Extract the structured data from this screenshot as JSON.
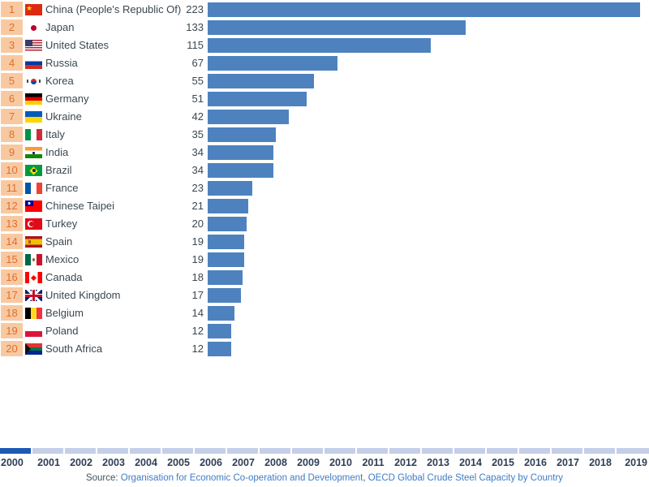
{
  "chart_data": {
    "type": "bar",
    "orientation": "horizontal",
    "title": "OECD Global Crude Steel Capacity by Country",
    "xlabel": "",
    "ylabel": "",
    "xlim": [
      0,
      223
    ],
    "grid": false,
    "legend": "none",
    "rows": [
      {
        "rank": 1,
        "country": "China (People's Republic Of)",
        "value": 223,
        "flag": "cn"
      },
      {
        "rank": 2,
        "country": "Japan",
        "value": 133,
        "flag": "jp"
      },
      {
        "rank": 3,
        "country": "United States",
        "value": 115,
        "flag": "us"
      },
      {
        "rank": 4,
        "country": "Russia",
        "value": 67,
        "flag": "ru"
      },
      {
        "rank": 5,
        "country": "Korea",
        "value": 55,
        "flag": "kr"
      },
      {
        "rank": 6,
        "country": "Germany",
        "value": 51,
        "flag": "de"
      },
      {
        "rank": 7,
        "country": "Ukraine",
        "value": 42,
        "flag": "ua"
      },
      {
        "rank": 8,
        "country": "Italy",
        "value": 35,
        "flag": "it"
      },
      {
        "rank": 9,
        "country": "India",
        "value": 34,
        "flag": "in"
      },
      {
        "rank": 10,
        "country": "Brazil",
        "value": 34,
        "flag": "br"
      },
      {
        "rank": 11,
        "country": "France",
        "value": 23,
        "flag": "fr"
      },
      {
        "rank": 12,
        "country": "Chinese Taipei",
        "value": 21,
        "flag": "tw"
      },
      {
        "rank": 13,
        "country": "Turkey",
        "value": 20,
        "flag": "tr"
      },
      {
        "rank": 14,
        "country": "Spain",
        "value": 19,
        "flag": "es"
      },
      {
        "rank": 15,
        "country": "Mexico",
        "value": 19,
        "flag": "mx"
      },
      {
        "rank": 16,
        "country": "Canada",
        "value": 18,
        "flag": "ca"
      },
      {
        "rank": 17,
        "country": "United Kingdom",
        "value": 17,
        "flag": "gb"
      },
      {
        "rank": 18,
        "country": "Belgium",
        "value": 14,
        "flag": "be"
      },
      {
        "rank": 19,
        "country": "Poland",
        "value": 12,
        "flag": "pl"
      },
      {
        "rank": 20,
        "country": "South Africa",
        "value": 12,
        "flag": "za"
      }
    ],
    "timeline": {
      "years": [
        "2000",
        "2001",
        "2002",
        "2003",
        "2004",
        "2005",
        "2006",
        "2007",
        "2008",
        "2009",
        "2010",
        "2011",
        "2012",
        "2013",
        "2014",
        "2015",
        "2016",
        "2017",
        "2018",
        "2019"
      ],
      "selected": "2000"
    }
  },
  "footer": {
    "source_prefix": "Source: ",
    "link1": "Organisation for Economic Co-operation and Development",
    "separator": ", ",
    "link2": "OECD Global Crude Steel Capacity by Country"
  },
  "colors": {
    "bar": "#4e82be",
    "rank_badge_bg": "#f8c9a1",
    "rank_badge_text": "#df6e2d",
    "row_text": "#3a4750",
    "year_selected": "#1d59b5",
    "year_unselected": "#c4d0e9",
    "year_text": "#2f3e55",
    "link": "#3e7cc7"
  }
}
